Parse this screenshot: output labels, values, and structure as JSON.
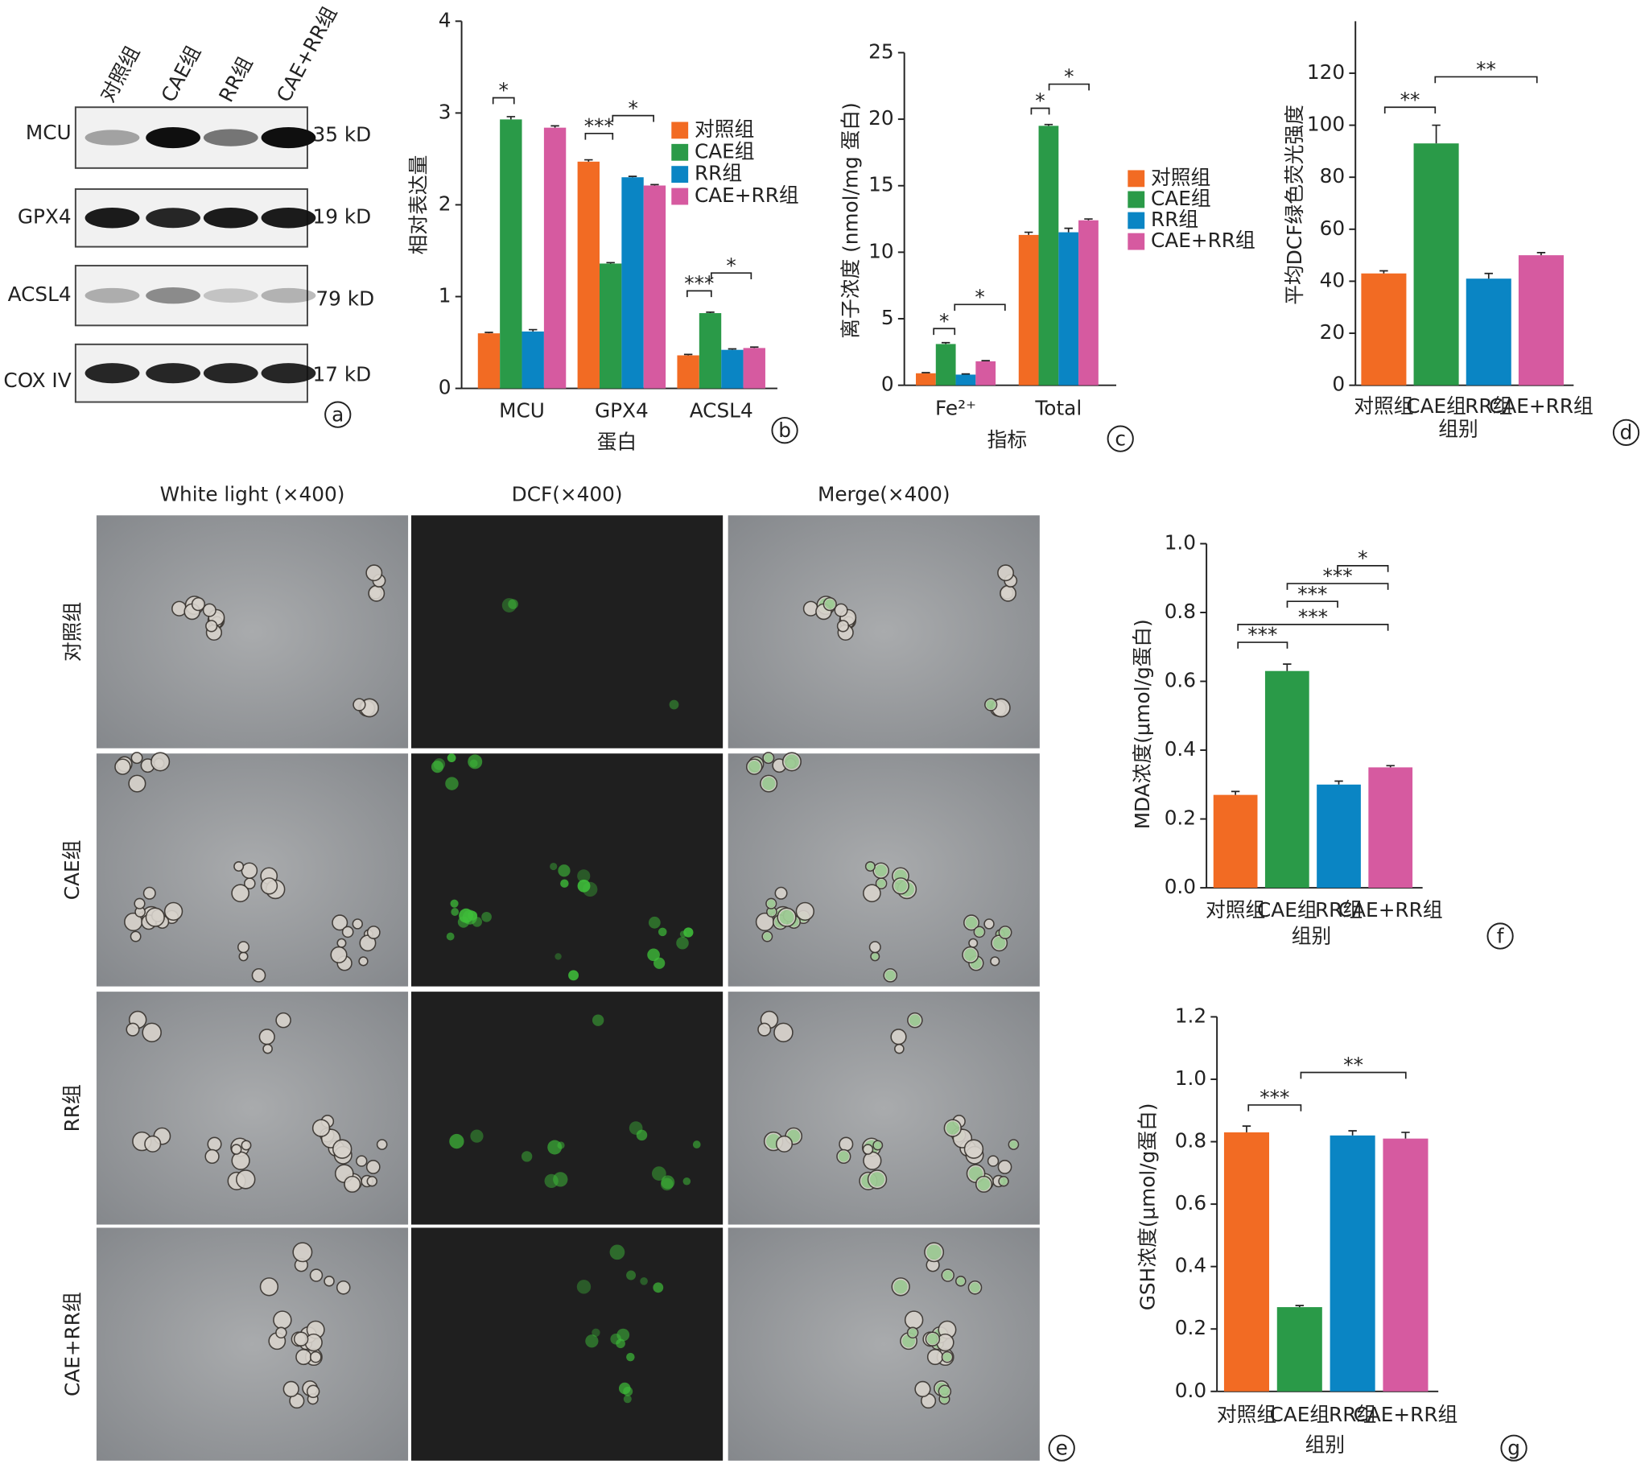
{
  "blot": {
    "panel": "a",
    "lanes": [
      "对照组",
      "CAE组",
      "RR组",
      "CAE+RR组"
    ],
    "proteins": [
      "MCU",
      "GPX4",
      "ACSL4",
      "COX IV"
    ],
    "sizes": [
      "35 kD",
      "19 kD",
      "79 kD",
      "17 kD"
    ]
  },
  "chart_data": [
    {
      "type": "grouped-bar",
      "panel": "b",
      "x_label": "蛋白",
      "y_label": "相对表达量",
      "categories": [
        "MCU",
        "GPX4",
        "ACSL4"
      ],
      "series": [
        {
          "name": "对照组",
          "color": "#f26b23",
          "values": [
            0.6,
            2.47,
            0.36
          ],
          "errors": [
            0.01,
            0.02,
            0.01
          ]
        },
        {
          "name": "CAE组",
          "color": "#2a9a48",
          "values": [
            2.93,
            1.36,
            0.82
          ],
          "errors": [
            0.03,
            0.01,
            0.01
          ]
        },
        {
          "name": "RR组",
          "color": "#0a85c4",
          "values": [
            0.62,
            2.3,
            0.42
          ],
          "errors": [
            0.02,
            0.01,
            0.01
          ]
        },
        {
          "name": "CAE+RR组",
          "color": "#d65aa0",
          "values": [
            2.84,
            2.21,
            0.44
          ],
          "errors": [
            0.02,
            0.01,
            0.01
          ]
        }
      ],
      "ylim": [
        0,
        4
      ],
      "yticks": [
        0,
        1,
        2,
        3,
        4
      ],
      "annotations": [
        "*",
        "***",
        "*",
        "***",
        "*"
      ]
    },
    {
      "type": "grouped-bar",
      "panel": "c",
      "x_label": "指标",
      "y_label": "离子浓度 (nmol/mg 蛋白)",
      "categories": [
        "Fe²⁺",
        "Total"
      ],
      "series": [
        {
          "name": "对照组",
          "color": "#f26b23",
          "values": [
            0.9,
            11.3
          ],
          "errors": [
            0.05,
            0.2
          ]
        },
        {
          "name": "CAE组",
          "color": "#2a9a48",
          "values": [
            3.1,
            19.5
          ],
          "errors": [
            0.1,
            0.1
          ]
        },
        {
          "name": "RR组",
          "color": "#0a85c4",
          "values": [
            0.8,
            11.5
          ],
          "errors": [
            0.05,
            0.3
          ]
        },
        {
          "name": "CAE+RR组",
          "color": "#d65aa0",
          "values": [
            1.8,
            12.4
          ],
          "errors": [
            0.05,
            0.1
          ]
        }
      ],
      "ylim": [
        0,
        25
      ],
      "yticks": [
        0,
        5,
        10,
        15,
        20,
        25
      ],
      "annotations": [
        "*",
        "*",
        "*",
        "*"
      ]
    },
    {
      "type": "bar",
      "panel": "d",
      "x_label": "组别",
      "y_label": "平均DCF绿色荧光强度",
      "categories": [
        "对照组",
        "CAE组",
        "RR组",
        "CAE+RR组"
      ],
      "values": [
        43,
        93,
        41,
        50
      ],
      "errors": [
        1,
        7,
        2,
        1
      ],
      "colors": [
        "#f26b23",
        "#2a9a48",
        "#0a85c4",
        "#d65aa0"
      ],
      "ylim": [
        0,
        140
      ],
      "yticks": [
        0,
        20,
        40,
        60,
        80,
        100,
        120
      ],
      "annotations": [
        "**",
        "**"
      ]
    },
    {
      "type": "bar",
      "panel": "f",
      "x_label": "组别",
      "y_label": "MDA浓度(μmol/g蛋白)",
      "categories": [
        "对照组",
        "CAE组",
        "RR组",
        "CAE+RR组"
      ],
      "values": [
        0.27,
        0.63,
        0.3,
        0.35
      ],
      "errors": [
        0.01,
        0.02,
        0.01,
        0.005
      ],
      "colors": [
        "#f26b23",
        "#2a9a48",
        "#0a85c4",
        "#d65aa0"
      ],
      "ylim": [
        0,
        1
      ],
      "yticks": [
        {
          "value": 0,
          "label": "0.0"
        },
        0.2,
        0.4,
        0.6,
        0.8,
        {
          "value": 1,
          "label": "1.0"
        }
      ],
      "annotations": [
        "*",
        "***",
        "***",
        "***",
        "***"
      ]
    },
    {
      "type": "bar",
      "panel": "g",
      "x_label": "组别",
      "y_label": "GSH浓度(μmol/g蛋白)",
      "categories": [
        "对照组",
        "CAE组",
        "RR组",
        "CAE+RR组"
      ],
      "values": [
        0.83,
        0.27,
        0.82,
        0.81
      ],
      "errors": [
        0.02,
        0.005,
        0.015,
        0.02
      ],
      "colors": [
        "#f26b23",
        "#2a9a48",
        "#0a85c4",
        "#d65aa0"
      ],
      "ylim": [
        0,
        1.2
      ],
      "yticks": [
        {
          "value": 0,
          "label": "0.0"
        },
        0.2,
        0.4,
        0.6,
        0.8,
        {
          "value": 1,
          "label": "1.0"
        },
        1.2
      ],
      "annotations": [
        "***",
        "**"
      ]
    }
  ],
  "images": {
    "panel": "e",
    "columns": [
      "White light (×400)",
      "DCF(×400)",
      "Merge(×400)"
    ],
    "rows": [
      "对照组",
      "CAE组",
      "RR组",
      "CAE+RR组"
    ]
  }
}
